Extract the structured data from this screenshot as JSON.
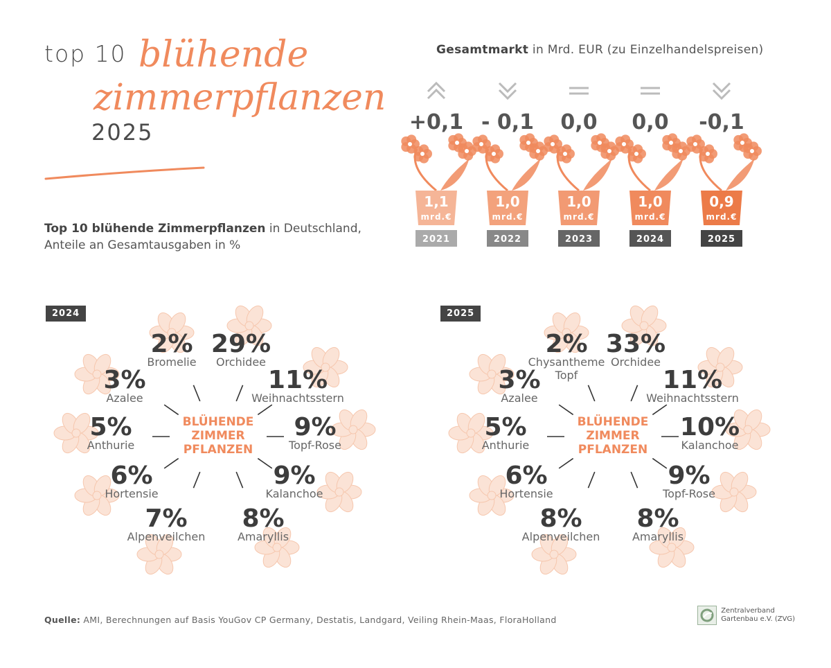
{
  "header": {
    "title_prefix": "top 10",
    "title_script_line1": "blühende",
    "title_script_line2": "zimmerpflanzen",
    "title_year": "2025"
  },
  "subtitle": {
    "bold": "Top 10 blühende Zimmerpflanzen",
    "rest": " in Deutschland,",
    "line2": "Anteile an Gesamtausgaben in %"
  },
  "market": {
    "heading_bold": "Gesamtmarkt",
    "heading_rest": " in Mrd. EUR (zu Einzelhandelspreisen)"
  },
  "center_label": [
    "BLÜHENDE",
    "ZIMMER",
    "PFLANZEN"
  ],
  "colors": {
    "accent": "#f08a5d",
    "light": "#f6c7ae",
    "dark": "#444444"
  },
  "chart_data": [
    {
      "type": "bar",
      "title": "Gesamtmarkt in Mrd. EUR (zu Einzelhandelspreisen)",
      "categories": [
        "2021",
        "2022",
        "2023",
        "2024",
        "2025"
      ],
      "values": [
        1.1,
        1.0,
        1.0,
        1.0,
        0.9
      ],
      "value_labels": [
        "1,1",
        "1,0",
        "1,0",
        "1,0",
        "0,9"
      ],
      "unit_label": "mrd.€",
      "changes": [
        "+0,1",
        "- 0,1",
        "0,0",
        "0,0",
        "-0,1"
      ],
      "trend": [
        "up",
        "down",
        "flat",
        "flat",
        "down"
      ],
      "chip_colors": [
        "#aaaaaa",
        "#888888",
        "#666666",
        "#555555",
        "#444444"
      ]
    },
    {
      "type": "table",
      "title": "2024",
      "center_label": "BLÜHENDE ZIMMER PFLANZEN",
      "items": [
        {
          "name": "Bromelie",
          "value": 2,
          "label": "2%"
        },
        {
          "name": "Orchidee",
          "value": 29,
          "label": "29%"
        },
        {
          "name": "Weihnachtsstern",
          "value": 11,
          "label": "11%"
        },
        {
          "name": "Topf-Rose",
          "value": 9,
          "label": "9%"
        },
        {
          "name": "Kalanchoe",
          "value": 9,
          "label": "9%"
        },
        {
          "name": "Amaryllis",
          "value": 8,
          "label": "8%"
        },
        {
          "name": "Alpenveilchen",
          "value": 7,
          "label": "7%"
        },
        {
          "name": "Hortensie",
          "value": 6,
          "label": "6%"
        },
        {
          "name": "Anthurie",
          "value": 5,
          "label": "5%"
        },
        {
          "name": "Azalee",
          "value": 3,
          "label": "3%"
        }
      ]
    },
    {
      "type": "table",
      "title": "2025",
      "center_label": "BLÜHENDE ZIMMER PFLANZEN",
      "items": [
        {
          "name": "Chysantheme Topf",
          "value": 2,
          "label": "2%"
        },
        {
          "name": "Orchidee",
          "value": 33,
          "label": "33%"
        },
        {
          "name": "Weihnachtsstern",
          "value": 11,
          "label": "11%"
        },
        {
          "name": "Kalanchoe",
          "value": 10,
          "label": "10%"
        },
        {
          "name": "Topf-Rose",
          "value": 9,
          "label": "9%"
        },
        {
          "name": "Amaryllis",
          "value": 8,
          "label": "8%"
        },
        {
          "name": "Alpenveilchen",
          "value": 8,
          "label": "8%"
        },
        {
          "name": "Hortensie",
          "value": 6,
          "label": "6%"
        },
        {
          "name": "Anthurie",
          "value": 5,
          "label": "5%"
        },
        {
          "name": "Azalee",
          "value": 3,
          "label": "3%"
        }
      ]
    }
  ],
  "footer": {
    "source_label": "Quelle:",
    "source_text": " AMI, Berechnungen auf Basis YouGov CP Germany, Destatis, Landgard, Veiling Rhein-Maas, FloraHolland",
    "org_line1": "Zentralverband",
    "org_line2": "Gartenbau e.V. (ZVG)"
  }
}
